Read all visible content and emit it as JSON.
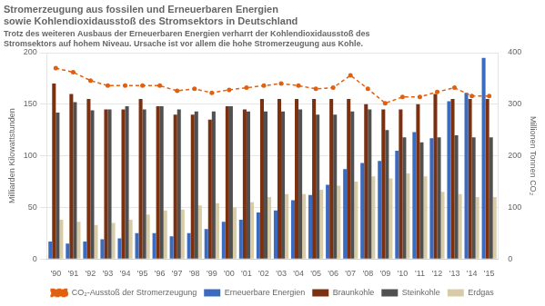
{
  "chart_data": {
    "type": "bar",
    "title": [
      "Stromerzeugung aus fossilen und Erneuerbaren Energien",
      "sowie Kohlendioxidausstoß des Stromsektors in Deutschland"
    ],
    "subtitle": [
      "Trotz des weiteren Ausbaus der Erneuerbaren Energien verharrt der Kohlendioxidausstoß des",
      "Stromsektors auf hohem Niveau. Ursache ist vor allem die hohe Stromerzeugung aus Kohle."
    ],
    "categories": [
      "'90",
      "'91",
      "'92",
      "'93",
      "'94",
      "'95",
      "'96",
      "'97",
      "'98",
      "'99",
      "'00",
      "'01",
      "'02",
      "'03",
      "'04",
      "'05",
      "'06",
      "'07",
      "'08",
      "'09",
      "'10",
      "'11",
      "'12",
      "'13",
      "'14",
      "'15"
    ],
    "series": [
      {
        "name": "Erneuerbare Energien",
        "color": "#3b6bbf",
        "values": [
          17,
          15,
          17,
          19,
          20,
          25,
          25,
          22,
          25,
          29,
          36,
          38,
          45,
          47,
          57,
          62,
          72,
          87,
          93,
          95,
          105,
          123,
          117,
          153,
          161,
          195
        ]
      },
      {
        "name": "Braunkohle",
        "color": "#7b3010",
        "values": [
          170,
          160,
          155,
          145,
          145,
          155,
          148,
          140,
          140,
          135,
          148,
          145,
          155,
          155,
          155,
          155,
          155,
          155,
          150,
          145,
          145,
          150,
          160,
          155,
          155,
          155
        ]
      },
      {
        "name": "Steinkohle",
        "color": "#505050",
        "values": [
          142,
          152,
          144,
          145,
          148,
          145,
          148,
          145,
          143,
          143,
          148,
          143,
          143,
          143,
          145,
          140,
          140,
          143,
          145,
          125,
          118,
          113,
          118,
          120,
          118,
          118
        ]
      },
      {
        "name": "Erdgas",
        "color": "#d8cca8",
        "values": [
          38,
          36,
          33,
          35,
          38,
          43,
          47,
          48,
          52,
          54,
          50,
          55,
          60,
          63,
          63,
          67,
          71,
          75,
          80,
          78,
          83,
          80,
          65,
          63,
          60,
          60
        ]
      },
      {
        "name": "CO₂-Ausstoß der Stromerzeugung",
        "type": "line",
        "axis": "y2",
        "color": "#e06010",
        "marker": "circle",
        "line_style": "dashed",
        "values": [
          370,
          362,
          346,
          336,
          336,
          336,
          336,
          326,
          330,
          322,
          328,
          332,
          336,
          340,
          336,
          330,
          332,
          356,
          330,
          302,
          314,
          314,
          324,
          332,
          316,
          316
        ]
      }
    ],
    "ylabel": "Milliarden Kilowattstunden",
    "y2label": "Millionen Tonnen CO₂",
    "ylim": [
      0,
      200
    ],
    "yticks": [
      0,
      50,
      100,
      150,
      200
    ],
    "y2lim": [
      0,
      400
    ],
    "y2ticks": [
      0,
      100,
      200,
      300,
      400
    ],
    "grid": true,
    "legend": "bottom"
  }
}
